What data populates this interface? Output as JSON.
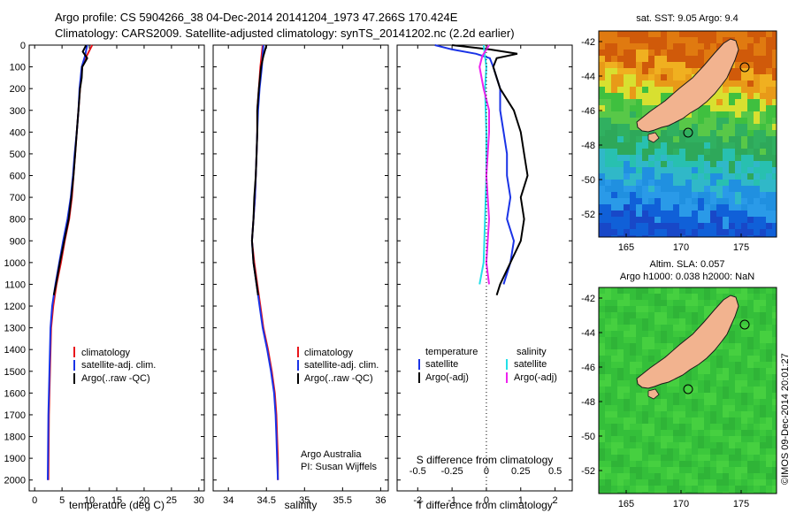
{
  "header": {
    "line1": "Argo profile: CS 5904266_38 04-Dec-2014 20141204_1973 47.266S 170.424E",
    "line2": "Climatology: CARS2009. Satellite-adjusted climatology: synTS_20141202.nc (2.2d earlier)"
  },
  "colors": {
    "climatology": "#e8151b",
    "satellite": "#1a33e6",
    "argo": "#000000",
    "salinity_satellite": "#22e0e8",
    "salinity_argo": "#ee22ee",
    "land": "#f2b38f"
  },
  "credits": {
    "line1": "Argo Australia",
    "line2": "PI: Susan Wijffels"
  },
  "legend_profiles": [
    "climatology",
    "satellite-adj. clim.",
    "Argo(..raw -QC)"
  ],
  "legend_diff": {
    "temp_title": "temperature",
    "sal_title": "salinity",
    "temp_items": [
      "satellite",
      "Argo(-adj)"
    ],
    "sal_items": [
      "satellite",
      "Argo(-adj)"
    ]
  },
  "maps": {
    "sst_title": "sat. SST: 9.05 Argo: 9.4",
    "sla_title1": "Altim. SLA: 0.057",
    "sla_title2": "Argo h1000: 0.038 h2000: NaN",
    "xticks": [
      "165",
      "170",
      "175"
    ],
    "yticks": [
      "-42",
      "-44",
      "-46",
      "-48",
      "-50",
      "-52"
    ],
    "sst_colormap": "jet (blue-cyan-green-yellow-orange)",
    "sla_colormap": "green field"
  },
  "watermark": "©IMOS 09-Dec-2014 20:01:27",
  "chart_data": [
    {
      "type": "line",
      "xlabel": "temperature (deg C)",
      "ylabel": "",
      "xlim": [
        -1,
        31
      ],
      "ylim": [
        2050,
        0
      ],
      "xticks": [
        "0",
        "5",
        "10",
        "15",
        "20",
        "25",
        "30"
      ],
      "yticks": [
        "0",
        "100",
        "200",
        "300",
        "400",
        "500",
        "600",
        "700",
        "800",
        "900",
        "1000",
        "1100",
        "1200",
        "1300",
        "1400",
        "1500",
        "1600",
        "1700",
        "1800",
        "1900",
        "2000"
      ],
      "series": [
        {
          "name": "climatology",
          "depth": [
            0,
            50,
            100,
            200,
            300,
            400,
            500,
            600,
            700,
            800,
            900,
            1000,
            1100,
            1200,
            1300,
            1500,
            1700,
            2000
          ],
          "values": [
            10.5,
            9.5,
            8.7,
            8.3,
            8.0,
            7.7,
            7.4,
            7.1,
            6.8,
            6.3,
            5.5,
            4.8,
            4.0,
            3.4,
            3.0,
            2.8,
            2.6,
            2.5
          ]
        },
        {
          "name": "satellite-adj. clim.",
          "depth": [
            0,
            50,
            100,
            200,
            300,
            400,
            500,
            600,
            700,
            800,
            900,
            1000,
            1100,
            1200,
            1300,
            1500,
            1700,
            2000
          ],
          "values": [
            9.6,
            9.2,
            8.6,
            8.2,
            8.0,
            7.7,
            7.3,
            7.0,
            6.6,
            6.0,
            5.2,
            4.5,
            3.8,
            3.2,
            2.9,
            2.7,
            2.5,
            2.4
          ]
        },
        {
          "name": "Argo(..raw -QC)",
          "depth": [
            0,
            30,
            60,
            100,
            150,
            200,
            300,
            400,
            500,
            600,
            700,
            800,
            900,
            1000,
            1100,
            1150
          ],
          "values": [
            9.4,
            8.8,
            9.6,
            8.7,
            8.6,
            8.3,
            8.0,
            7.7,
            7.4,
            7.1,
            6.7,
            6.2,
            5.4,
            4.6,
            3.9,
            3.5
          ]
        }
      ]
    },
    {
      "type": "line",
      "xlabel": "salinity",
      "ylabel": "",
      "xlim": [
        33.8,
        36.1
      ],
      "ylim": [
        2050,
        0
      ],
      "xticks": [
        "34",
        "34.5",
        "35",
        "35.5",
        "36"
      ],
      "series": [
        {
          "name": "climatology",
          "depth": [
            0,
            100,
            200,
            300,
            400,
            500,
            600,
            700,
            800,
            900,
            1000,
            1100,
            1200,
            1300,
            1400,
            1500,
            1600,
            1700,
            1800,
            1900,
            2000
          ],
          "values": [
            34.45,
            34.42,
            34.4,
            34.38,
            34.38,
            34.37,
            34.36,
            34.35,
            34.33,
            34.31,
            34.34,
            34.38,
            34.42,
            34.46,
            34.52,
            34.57,
            34.61,
            34.63,
            34.64,
            34.65,
            34.65
          ]
        },
        {
          "name": "satellite-adj. clim.",
          "depth": [
            0,
            100,
            200,
            300,
            400,
            500,
            600,
            700,
            800,
            900,
            1000,
            1100,
            1200,
            1300,
            1400,
            1500,
            1600,
            1700,
            1800,
            1900,
            2000
          ],
          "values": [
            34.46,
            34.44,
            34.41,
            34.39,
            34.38,
            34.37,
            34.36,
            34.35,
            34.33,
            34.31,
            34.33,
            34.37,
            34.41,
            34.45,
            34.51,
            34.56,
            34.6,
            34.62,
            34.63,
            34.64,
            34.65
          ]
        },
        {
          "name": "Argo(..raw -QC)",
          "depth": [
            0,
            50,
            100,
            200,
            300,
            400,
            500,
            600,
            700,
            800,
            900,
            1000,
            1100,
            1150
          ],
          "values": [
            34.5,
            34.46,
            34.43,
            34.4,
            34.38,
            34.38,
            34.37,
            34.36,
            34.34,
            34.33,
            34.31,
            34.33,
            34.37,
            34.39
          ]
        }
      ]
    },
    {
      "type": "line",
      "xlabel": "T difference from climatology",
      "xlabel2": "S difference from climatology",
      "ylabel": "",
      "xlim": [
        -2.6,
        2.5
      ],
      "ylim": [
        2050,
        0
      ],
      "xticks": [
        "-2",
        "-1",
        "0",
        "1",
        "2"
      ],
      "xticks_s_values": [
        -0.5,
        -0.25,
        0,
        0.25,
        0.5
      ],
      "xticks_s": [
        "-0.5",
        "-0.25",
        "0",
        "0.25",
        "0.5"
      ],
      "series": [
        {
          "name": "temperature satellite",
          "depth": [
            0,
            20,
            40,
            60,
            100,
            150,
            200,
            300,
            400,
            500,
            600,
            700,
            800,
            900,
            1000,
            1100
          ],
          "values": [
            -1.5,
            -1.0,
            -0.3,
            0.1,
            0.2,
            0.3,
            0.4,
            0.4,
            0.5,
            0.6,
            0.6,
            0.7,
            0.6,
            0.8,
            0.7,
            0.5
          ]
        },
        {
          "name": "temperature Argo(-adj)",
          "depth": [
            0,
            20,
            40,
            60,
            100,
            150,
            200,
            300,
            400,
            500,
            600,
            700,
            800,
            900,
            1000,
            1100,
            1150
          ],
          "values": [
            -1.0,
            0.1,
            0.9,
            0.3,
            0.2,
            0.3,
            0.4,
            0.8,
            1.0,
            1.1,
            1.2,
            1.0,
            1.1,
            1.0,
            0.7,
            0.4,
            0.3
          ]
        },
        {
          "name": "salinity satellite",
          "depth": [
            0,
            100,
            200,
            400,
            600,
            800,
            1000,
            1100
          ],
          "values": [
            -0.02,
            0.0,
            -0.01,
            0.0,
            0.0,
            -0.01,
            -0.02,
            -0.05
          ]
        },
        {
          "name": "salinity Argo(-adj)",
          "depth": [
            0,
            50,
            100,
            200,
            300,
            400,
            600,
            800,
            1000,
            1100
          ],
          "values": [
            0.02,
            -0.03,
            -0.05,
            -0.02,
            0.02,
            0.02,
            0.0,
            0.02,
            0.0,
            0.02
          ]
        }
      ]
    }
  ]
}
